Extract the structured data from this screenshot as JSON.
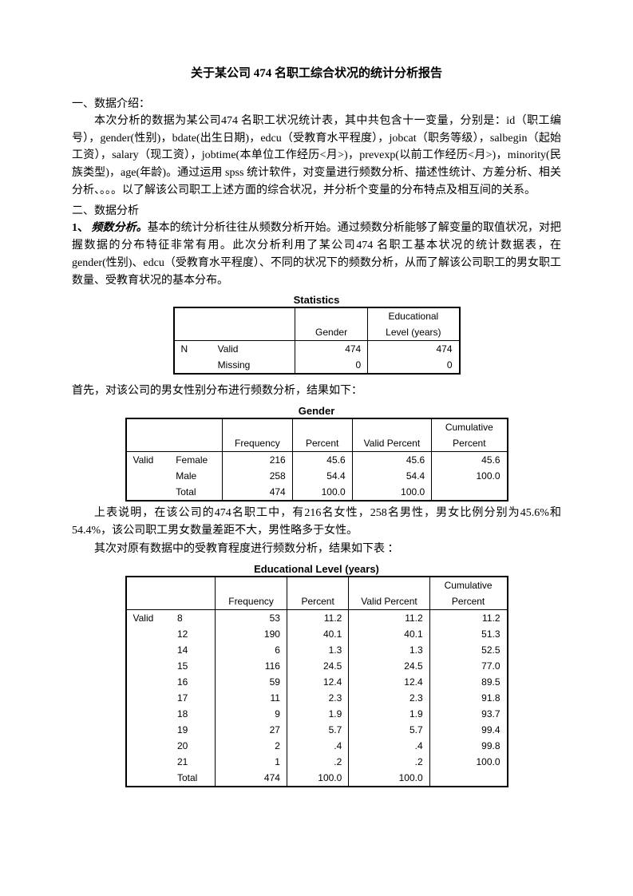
{
  "title": "关于某公司 474 名职工综合状况的统计分析报告",
  "s1_head": "一、数据介绍：",
  "s1_p1": "本次分析的数据为某公司474 名职工状况统计表，其中共包含十一变量，分别是：id（职工编号），gender(性别)，bdate(出生日期)，edcu（受教育水平程度），jobcat（职务等级），salbegin（起始工资），salary（现工资），jobtime(本单位工作经历<月>)，prevexp(以前工作经历<月>)，minority(民族类型)，age(年龄)。通过运用 spss 统计软件，对变量进行频数分析、描述性统计、方差分析、相关分析、。。。以了解该公司职工上述方面的综合状况，并分析个变量的分布特点及相互间的关系。",
  "s2_head": "二、数据分析",
  "s2_item1_label": "1、",
  "s2_item1_title": "频数分析。",
  "s2_item1_body": "基本的统计分析往往从频数分析开始。通过频数分析能够了解变量的取值状况，对把握数据的分布特征非常有用。此次分析利用了某公司474 名职工基本状况的统计数据表，在 gender(性别)、edcu（受教育水平程度）、不同的状况下的频数分析，从而了解该公司职工的男女职工数量、受教育状况的基本分布。",
  "stats_title": "Statistics",
  "stats": {
    "h_gender": "Gender",
    "h_edu": "Educational Level (years)",
    "rowlabel": "N",
    "valid_label": "Valid",
    "missing_label": "Missing",
    "valid_g": "474",
    "valid_e": "474",
    "miss_g": "0",
    "miss_e": "0"
  },
  "p_after_stats": "首先，对该公司的男女性别分布进行频数分析，结果如下：",
  "gender_title": "Gender",
  "gender_tbl": {
    "h_freq": "Frequency",
    "h_pct": "Percent",
    "h_vpct": "Valid Percent",
    "h_cpct": "Cumulative Percent",
    "rowhead": "Valid",
    "r1_l": "Female",
    "r1_f": "216",
    "r1_p": "45.6",
    "r1_v": "45.6",
    "r1_c": "45.6",
    "r2_l": "Male",
    "r2_f": "258",
    "r2_p": "54.4",
    "r2_v": "54.4",
    "r2_c": "100.0",
    "r3_l": "Total",
    "r3_f": "474",
    "r3_p": "100.0",
    "r3_v": "100.0",
    "r3_c": ""
  },
  "p_after_gender1": "上表说明，在该公司的474名职工中，有216名女性，258名男性，男女比例分别为45.6%和54.4%，该公司职工男女数量差距不大，男性略多于女性。",
  "p_after_gender2": "其次对原有数据中的受教育程度进行频数分析，结果如下表 ：",
  "edu_title": "Educational Level (years)",
  "edu_tbl": {
    "h_freq": "Frequency",
    "h_pct": "Percent",
    "h_vpct": "Valid Percent",
    "h_cpct": "Cumulative Percent",
    "rowhead": "Valid",
    "rows": [
      {
        "l": "8",
        "f": "53",
        "p": "11.2",
        "v": "11.2",
        "c": "11.2"
      },
      {
        "l": "12",
        "f": "190",
        "p": "40.1",
        "v": "40.1",
        "c": "51.3"
      },
      {
        "l": "14",
        "f": "6",
        "p": "1.3",
        "v": "1.3",
        "c": "52.5"
      },
      {
        "l": "15",
        "f": "116",
        "p": "24.5",
        "v": "24.5",
        "c": "77.0"
      },
      {
        "l": "16",
        "f": "59",
        "p": "12.4",
        "v": "12.4",
        "c": "89.5"
      },
      {
        "l": "17",
        "f": "11",
        "p": "2.3",
        "v": "2.3",
        "c": "91.8"
      },
      {
        "l": "18",
        "f": "9",
        "p": "1.9",
        "v": "1.9",
        "c": "93.7"
      },
      {
        "l": "19",
        "f": "27",
        "p": "5.7",
        "v": "5.7",
        "c": "99.4"
      },
      {
        "l": "20",
        "f": "2",
        "p": ".4",
        "v": ".4",
        "c": "99.8"
      },
      {
        "l": "21",
        "f": "1",
        "p": ".2",
        "v": ".2",
        "c": "100.0"
      }
    ],
    "total_l": "Total",
    "total_f": "474",
    "total_p": "100.0",
    "total_v": "100.0"
  }
}
